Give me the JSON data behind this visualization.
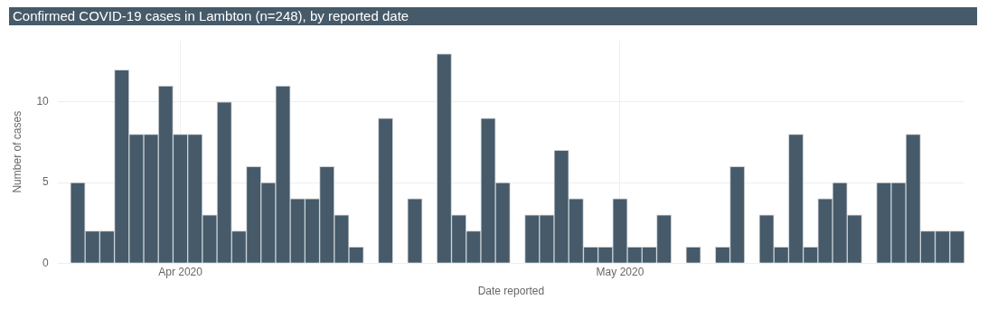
{
  "chart_data": {
    "type": "bar",
    "title": "Confirmed COVID-19 cases in Lambton (n=248), by reported date",
    "xlabel": "Date reported",
    "ylabel": "Number of cases",
    "x": [
      "2020-03-25",
      "2020-03-26",
      "2020-03-27",
      "2020-03-28",
      "2020-03-29",
      "2020-03-30",
      "2020-03-31",
      "2020-04-01",
      "2020-04-02",
      "2020-04-03",
      "2020-04-04",
      "2020-04-05",
      "2020-04-06",
      "2020-04-07",
      "2020-04-08",
      "2020-04-09",
      "2020-04-10",
      "2020-04-11",
      "2020-04-12",
      "2020-04-13",
      "2020-04-15",
      "2020-04-17",
      "2020-04-19",
      "2020-04-20",
      "2020-04-21",
      "2020-04-22",
      "2020-04-23",
      "2020-04-25",
      "2020-04-26",
      "2020-04-27",
      "2020-04-28",
      "2020-04-29",
      "2020-04-30",
      "2020-05-01",
      "2020-05-02",
      "2020-05-03",
      "2020-05-04",
      "2020-05-06",
      "2020-05-08",
      "2020-05-09",
      "2020-05-11",
      "2020-05-12",
      "2020-05-13",
      "2020-05-14",
      "2020-05-15",
      "2020-05-16",
      "2020-05-17",
      "2020-05-19",
      "2020-05-20",
      "2020-05-21",
      "2020-05-22",
      "2020-05-23",
      "2020-05-24"
    ],
    "values": [
      5,
      2,
      2,
      12,
      8,
      8,
      11,
      8,
      8,
      3,
      10,
      2,
      6,
      5,
      11,
      4,
      4,
      6,
      3,
      1,
      9,
      4,
      13,
      3,
      2,
      9,
      5,
      3,
      3,
      7,
      4,
      1,
      1,
      4,
      1,
      1,
      3,
      1,
      1,
      6,
      3,
      1,
      8,
      1,
      4,
      5,
      3,
      5,
      5,
      8,
      2,
      2,
      2
    ],
    "color": "#465a69",
    "xlim": [
      "2020-03-23T15:00",
      "2020-05-24T12:00"
    ],
    "xticks": [
      {
        "value": "2020-04-01",
        "label": "Apr 2020"
      },
      {
        "value": "2020-05-01",
        "label": "May 2020"
      }
    ],
    "ylim": [
      0,
      13.8
    ],
    "yticks": [
      0,
      5,
      10
    ],
    "grid": true,
    "legend": false
  }
}
